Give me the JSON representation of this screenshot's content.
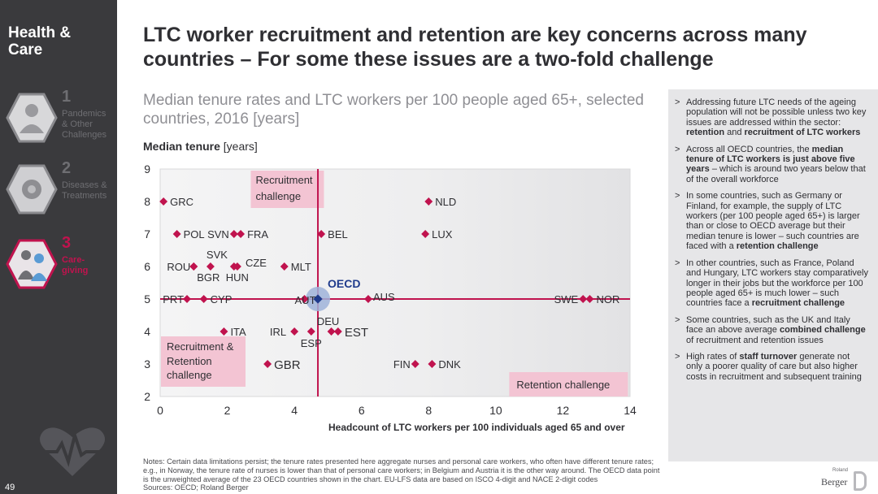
{
  "sidebar": {
    "title_line1": "Health &",
    "title_line2": "Care",
    "items": [
      {
        "num": "1",
        "line1": "Pandemics",
        "line2": "& Other",
        "line3": "Challenges",
        "icon": "person-icon"
      },
      {
        "num": "2",
        "line1": "Diseases &",
        "line2": "Treatments",
        "line3": "",
        "icon": "virus-icon"
      },
      {
        "num": "3",
        "line1": "Care-",
        "line2": "giving",
        "line3": "",
        "icon": "caregiver-icon"
      }
    ],
    "page_number": "49"
  },
  "header": {
    "title": "LTC worker recruitment and retention are key concerns across many countries – For some these issues are a two-fold challenge",
    "subtitle": "Median tenure rates and LTC workers per 100 people aged 65+, selected countries, 2016 [years]",
    "ylabel_bold": "Median tenure",
    "ylabel_rest": " [years]"
  },
  "chart_data": {
    "type": "scatter",
    "title": "Median tenure rates and LTC workers per 100 people aged 65+, selected countries, 2016 [years]",
    "xlabel": "Headcount of LTC workers per 100 individuals aged 65 and over",
    "ylabel": "Median tenure [years]",
    "xlim": [
      0,
      14
    ],
    "ylim": [
      2,
      9
    ],
    "xticks": [
      "0",
      "2",
      "4",
      "6",
      "8",
      "10",
      "12",
      "14"
    ],
    "yticks": [
      "2",
      "3",
      "4",
      "5",
      "6",
      "7",
      "8",
      "9"
    ],
    "reference_lines": {
      "x": 4.7,
      "y": 5.0
    },
    "oecd": {
      "label": "OECD",
      "x": 4.7,
      "y": 5.0
    },
    "points": [
      {
        "label": "GRC",
        "x": 0.1,
        "y": 8.0
      },
      {
        "label": "POL",
        "x": 0.5,
        "y": 7.0
      },
      {
        "label": "SVN",
        "x": 2.2,
        "y": 7.0
      },
      {
        "label": "FRA",
        "x": 2.4,
        "y": 7.0
      },
      {
        "label": "BEL",
        "x": 4.8,
        "y": 7.0
      },
      {
        "label": "NLD",
        "x": 8.0,
        "y": 8.0
      },
      {
        "label": "LUX",
        "x": 7.9,
        "y": 7.0
      },
      {
        "label": "ROU",
        "x": 1.0,
        "y": 6.0
      },
      {
        "label": "SVK",
        "x": 1.5,
        "y": 6.0
      },
      {
        "label": "BGR",
        "x": 1.0,
        "y": 6.0
      },
      {
        "label": "HUN",
        "x": 2.2,
        "y": 6.0
      },
      {
        "label": "CZE",
        "x": 2.3,
        "y": 6.0
      },
      {
        "label": "MLT",
        "x": 3.7,
        "y": 6.0
      },
      {
        "label": "PRT",
        "x": 0.8,
        "y": 5.0
      },
      {
        "label": "CYP",
        "x": 1.3,
        "y": 5.0
      },
      {
        "label": "AUT",
        "x": 4.3,
        "y": 5.0
      },
      {
        "label": "AUS",
        "x": 6.2,
        "y": 5.0
      },
      {
        "label": "SWE",
        "x": 12.6,
        "y": 5.0
      },
      {
        "label": "NOR",
        "x": 12.8,
        "y": 5.0
      },
      {
        "label": "ITA",
        "x": 1.9,
        "y": 4.0
      },
      {
        "label": "IRL",
        "x": 4.0,
        "y": 4.0
      },
      {
        "label": "ESP",
        "x": 4.5,
        "y": 4.0
      },
      {
        "label": "DEU",
        "x": 5.1,
        "y": 4.0
      },
      {
        "label": "EST",
        "x": 5.3,
        "y": 4.0
      },
      {
        "label": "GBR",
        "x": 3.2,
        "y": 3.0
      },
      {
        "label": "FIN",
        "x": 7.6,
        "y": 3.0
      },
      {
        "label": "DNK",
        "x": 8.1,
        "y": 3.0
      }
    ],
    "quadrant_labels": {
      "recruitment": "Recruitment challenge",
      "combined": "Recruitment & Retention challenge",
      "retention": "Retention challenge"
    }
  },
  "panel": {
    "bullets": [
      {
        "parts": [
          [
            "Addressing future LTC needs of the ageing population will not be possible unless two key issues are addressed within the sector: ",
            false
          ],
          [
            "retention",
            true
          ],
          [
            " and ",
            false
          ],
          [
            "recruitment of LTC workers",
            true
          ]
        ]
      },
      {
        "parts": [
          [
            "Across all OECD countries, the ",
            false
          ],
          [
            "median tenure of LTC workers is just above five years",
            true
          ],
          [
            " – which is around two years below that of the overall workforce",
            false
          ]
        ]
      },
      {
        "parts": [
          [
            "In some countries, such as Germany or Finland, for example, the supply of LTC workers (per 100 people aged 65+) is larger than or close to OECD average but their median tenure is lower – such countries are faced with a ",
            false
          ],
          [
            "retention challenge",
            true
          ]
        ]
      },
      {
        "parts": [
          [
            "In other countries, such as France, Poland and Hungary, LTC workers stay comparatively longer in their jobs but the workforce per 100 people aged 65+ is much lower – such countries face a ",
            false
          ],
          [
            "recruitment challenge",
            true
          ]
        ]
      },
      {
        "parts": [
          [
            "Some countries, such as the UK and Italy face an above average ",
            false
          ],
          [
            "combined challenge",
            true
          ],
          [
            " of recruitment and retention issues",
            false
          ]
        ]
      },
      {
        "parts": [
          [
            "High rates of ",
            false
          ],
          [
            "staff turnover",
            true
          ],
          [
            " generate not only a poorer quality of care but also higher costs in recruitment and subsequent training",
            false
          ]
        ]
      }
    ]
  },
  "notes": {
    "line1": "Notes: Certain data limitations persist; the tenure rates presented here aggregate nurses and personal care workers, who often have different tenure rates; e.g., in Norway, the tenure rate of nurses is lower than that of personal care workers; in Belgium and Austria it is the other way around. The OECD data point is the unweighted average of the 23 OECD countries shown in the chart. EU-LFS data are based on ISCO 4-digit and NACE 2-digit codes",
    "line2": "Sources: OECD; Roland Berger"
  },
  "logo": {
    "small": "Roland",
    "name": "Berger"
  },
  "colors": {
    "accent": "#c0134e",
    "quadrant": "#f3c4d3",
    "oecd": "#1f3b8c",
    "sidebar": "#3a3a3d"
  }
}
